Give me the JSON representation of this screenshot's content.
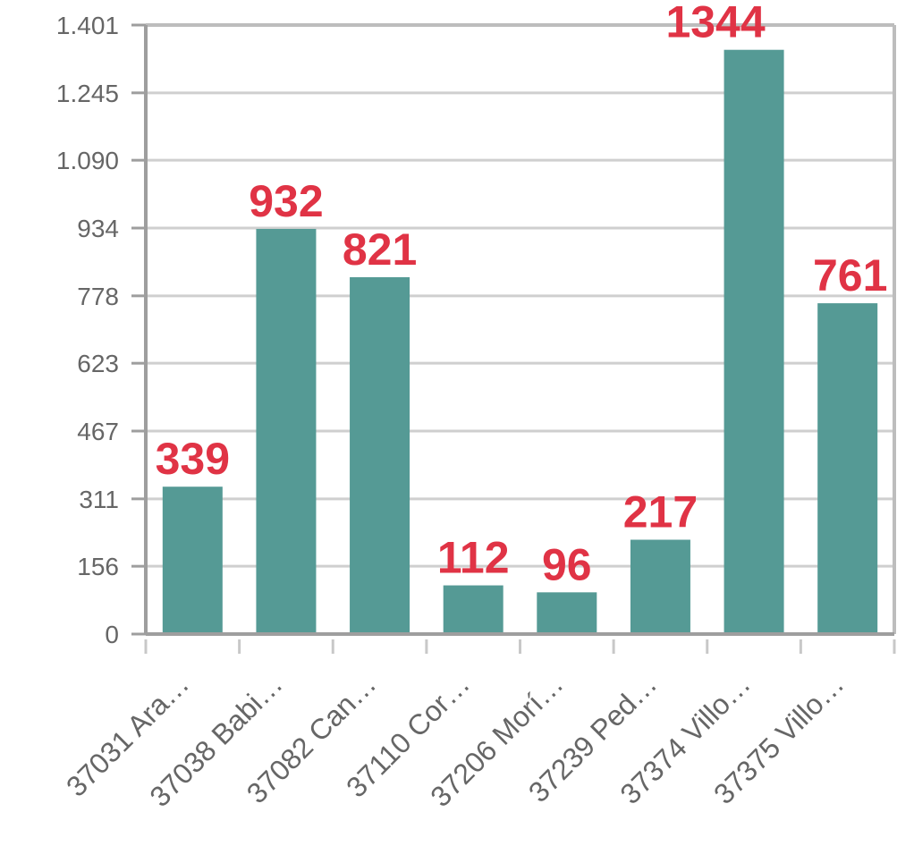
{
  "chart_data": {
    "type": "bar",
    "title": "",
    "xlabel": "",
    "ylabel": "",
    "categories": [
      "37031 Ara…",
      "37038 Babi…",
      "37082 Can…",
      "37110 Cor…",
      "37206 Morí…",
      "37239 Ped…",
      "37374 Villo…",
      "37375 Villo…"
    ],
    "values": [
      339,
      932,
      821,
      112,
      96,
      217,
      1344,
      761
    ],
    "data_labels": [
      "339",
      "932",
      "821",
      "112",
      "96",
      "217",
      "1344",
      "761"
    ],
    "yticks": [
      0,
      156,
      311,
      467,
      623,
      778,
      934,
      1090,
      1245,
      1401
    ],
    "ytick_labels": [
      "0",
      "156",
      "311",
      "467",
      "623",
      "778",
      "934",
      "1.090",
      "1.245",
      "1.401"
    ],
    "ylim": [
      0,
      1401
    ],
    "grid": true,
    "legend": "none",
    "colors": {
      "bar": "#559a95",
      "data_label": "#e03345",
      "grid": "#cfcfcf",
      "axis": "#9e9e9e",
      "text": "#666666"
    }
  }
}
